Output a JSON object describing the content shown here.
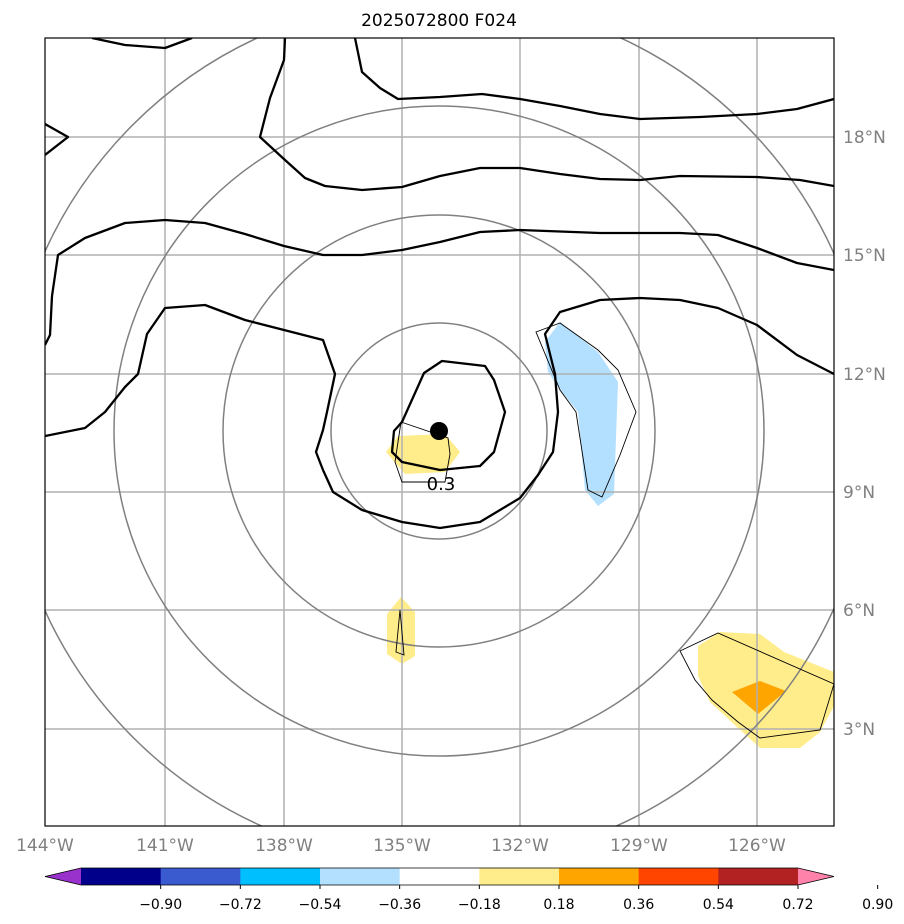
{
  "title": "2025072800 F024",
  "map": {
    "lon_ticks": [
      "144°W",
      "141°W",
      "138°W",
      "135°W",
      "132°W",
      "129°W",
      "126°W"
    ],
    "lat_ticks": [
      "18°N",
      "15°N",
      "12°N",
      "9°N",
      "6°N",
      "3°N"
    ],
    "extent": {
      "lon_min": -144,
      "lon_max": -124,
      "lat_min": 0,
      "lat_max": 20
    },
    "center_marker": {
      "lon": -134.0,
      "lat": 10.5
    },
    "contour_label": "0.3"
  },
  "colorbar": {
    "labels": [
      "−0.90",
      "−0.72",
      "−0.54",
      "−0.36",
      "−0.18",
      "0.18",
      "0.36",
      "0.54",
      "0.72",
      "0.90"
    ],
    "colors": [
      "#9932cc",
      "#00008b",
      "#3a5bd0",
      "#00bfff",
      "#b3e0ff",
      "#ffffff",
      "#ffec8b",
      "#ffa500",
      "#ff4500",
      "#b22222",
      "#ff82ab"
    ]
  },
  "colors": {
    "gridline": "#b0b0b0",
    "range_ring": "#808080",
    "contour": "#000000",
    "shade_light_blue": "#b3e0ff",
    "shade_yellow": "#ffec8b",
    "shade_orange": "#ffa500"
  }
}
